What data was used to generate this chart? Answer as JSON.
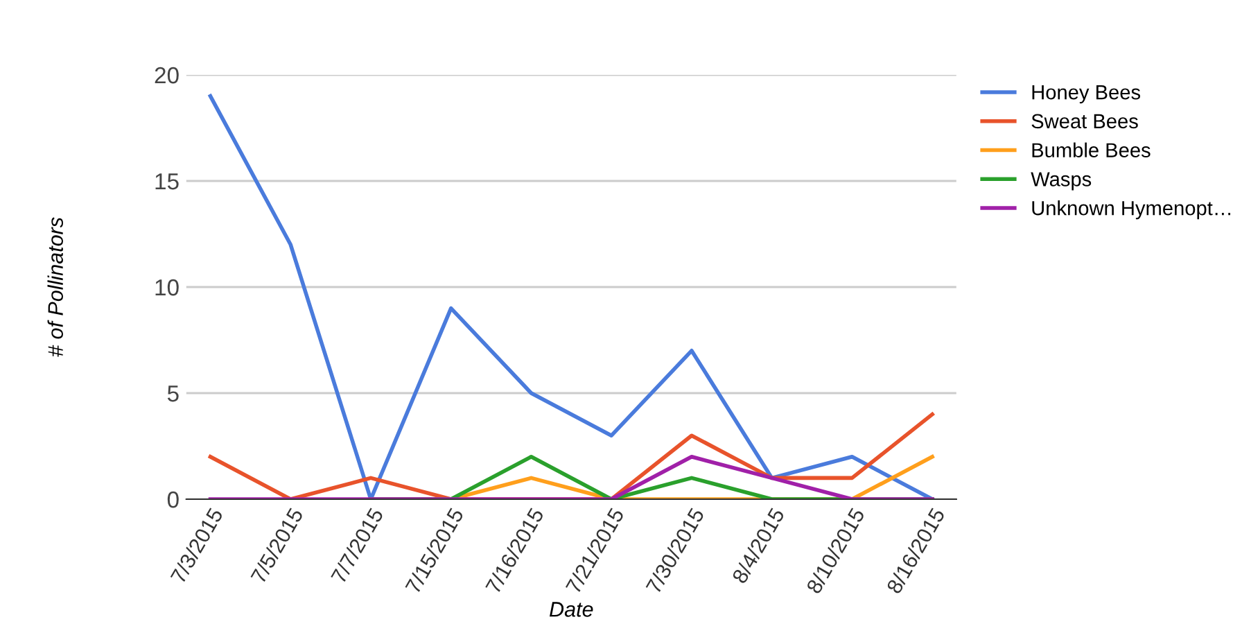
{
  "chart_data": {
    "type": "line",
    "xlabel": "Date",
    "ylabel": "# of Pollinators",
    "categories": [
      "7/3/2015",
      "7/5/2015",
      "7/7/2015",
      "7/15/2015",
      "7/16/2015",
      "7/21/2015",
      "7/30/2015",
      "8/4/2015",
      "8/10/2015",
      "8/16/2015"
    ],
    "series": [
      {
        "name": "Honey Bees",
        "color": "#4a7bdc",
        "values": [
          19,
          12,
          0,
          9,
          5,
          3,
          7,
          1,
          2,
          0
        ]
      },
      {
        "name": "Sweat Bees",
        "color": "#e8532b",
        "values": [
          2,
          0,
          1,
          0,
          0,
          0,
          3,
          1,
          1,
          4
        ]
      },
      {
        "name": "Bumble Bees",
        "color": "#ff9f1c",
        "values": [
          null,
          null,
          0,
          0,
          1,
          0,
          0,
          0,
          0,
          2
        ]
      },
      {
        "name": "Wasps",
        "color": "#2aa02c",
        "values": [
          null,
          null,
          0,
          0,
          2,
          0,
          1,
          0,
          0,
          0
        ]
      },
      {
        "name": "Unknown Hymenopt…",
        "color": "#a020a8",
        "values": [
          0,
          0,
          0,
          0,
          0,
          0,
          2,
          1,
          0,
          0
        ]
      }
    ],
    "ylim": [
      0,
      20
    ],
    "yticks": [
      0,
      5,
      10,
      15,
      20
    ],
    "grid": "y",
    "legend": "right",
    "marker": "none",
    "line_style": "solid"
  }
}
